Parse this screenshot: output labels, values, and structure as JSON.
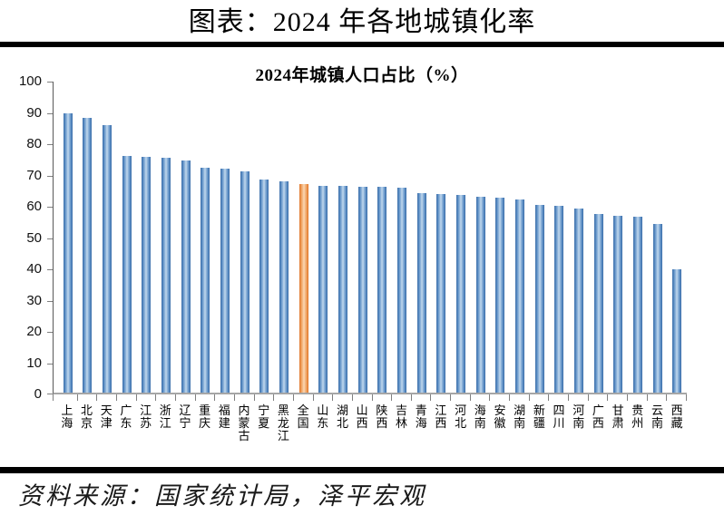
{
  "page_title": "图表：2024 年各地城镇化率",
  "source_note": "资料来源：国家统计局，泽平宏观",
  "colors": {
    "bar_blue": "#4f81bd",
    "bar_highlight_orange": "#f79646",
    "divider_black": "#000000",
    "axis_gray": "#808080"
  },
  "chart_data": {
    "type": "bar",
    "title": "2024年城镇人口占比（%）",
    "categories": [
      "上海",
      "北京",
      "天津",
      "广东",
      "江苏",
      "浙江",
      "辽宁",
      "重庆",
      "福建",
      "内蒙古",
      "宁夏",
      "黑龙江",
      "全国",
      "山东",
      "湖北",
      "山西",
      "陕西",
      "吉林",
      "青海",
      "江西",
      "河北",
      "海南",
      "安徽",
      "湖南",
      "新疆",
      "四川",
      "河南",
      "广西",
      "甘肃",
      "贵州",
      "云南",
      "西藏"
    ],
    "values": [
      89.9,
      88.3,
      86.1,
      76.2,
      75.9,
      75.6,
      74.5,
      72.4,
      72.0,
      71.0,
      68.4,
      68.0,
      67.0,
      66.5,
      66.4,
      66.3,
      66.2,
      66.0,
      64.2,
      63.9,
      63.6,
      63.1,
      62.7,
      62.2,
      60.4,
      60.2,
      59.2,
      57.3,
      56.9,
      56.7,
      54.3,
      39.6
    ],
    "highlight_category": "全国",
    "highlight_index": 12,
    "xlabel": "",
    "ylabel": "",
    "ylim": [
      0,
      100
    ],
    "yticks": [
      0,
      10,
      20,
      30,
      40,
      50,
      60,
      70,
      80,
      90,
      100
    ],
    "grid": false,
    "legend": "none",
    "x_label_orientation": "vertical"
  }
}
